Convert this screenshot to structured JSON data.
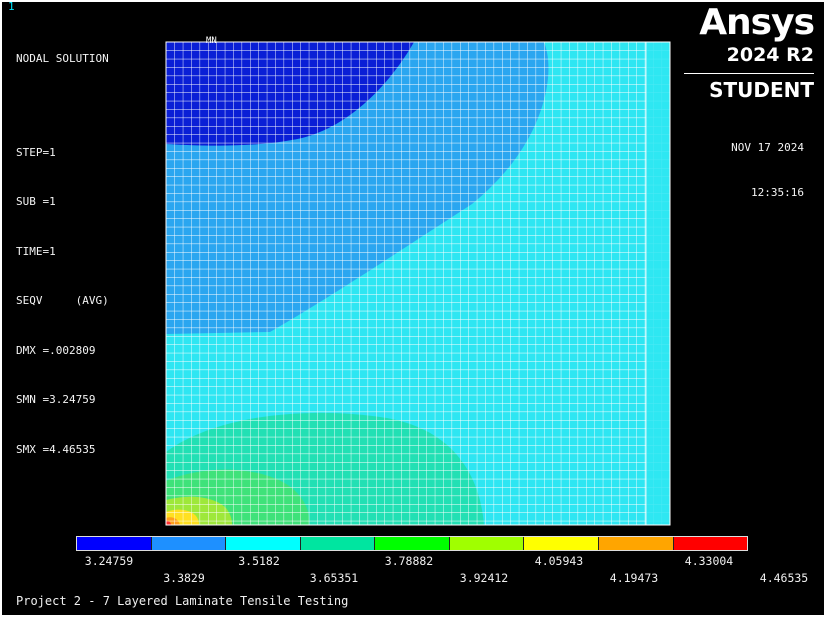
{
  "window": {
    "number": "1"
  },
  "solution": {
    "heading": "NODAL SOLUTION",
    "lines": [
      "STEP=1",
      "SUB =1",
      "TIME=1",
      "SEQV     (AVG)",
      "DMX =.002809",
      "SMN =3.24759",
      "SMX =4.46535"
    ],
    "min_marker": "MN"
  },
  "branding": {
    "logo": "Ansys",
    "version": "2024 R2",
    "edition": "STUDENT"
  },
  "datetime": {
    "date": "NOV 17 2024",
    "time": "12:35:16"
  },
  "legend": {
    "colors": [
      "#0000ff",
      "#1e90ff",
      "#00ffff",
      "#00e5a0",
      "#00ff00",
      "#a0ff00",
      "#ffff00",
      "#ffa500",
      "#ff0000"
    ],
    "labels_top": [
      "3.24759",
      "3.5182",
      "3.78882",
      "4.05943",
      "4.33004"
    ],
    "labels_bottom": [
      "3.3829",
      "3.65351",
      "3.92412",
      "4.19473",
      "4.46535"
    ]
  },
  "contour": {
    "colors": {
      "band1": "#0a1fd6",
      "band2": "#2aa6f0",
      "band3": "#2ee6f2",
      "band4": "#22e0b4",
      "band5": "#3fe27a",
      "band6": "#9ee83a",
      "band7": "#ffe020",
      "band8": "#ff9f1a",
      "band9": "#ff3030",
      "mesh": "#ffffff"
    }
  },
  "footer": {
    "title": "Project 2 - 7 Layered Laminate Tensile Testing"
  }
}
